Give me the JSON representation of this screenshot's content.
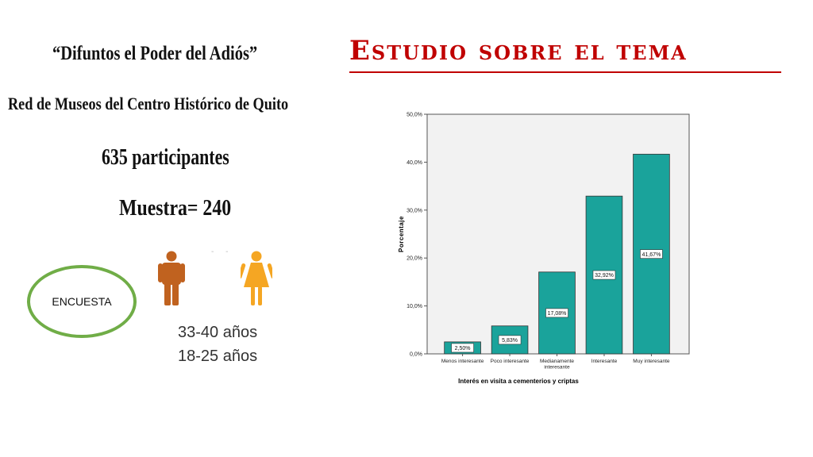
{
  "slide": {
    "quote_title": "“Difuntos el Poder del Adiós”",
    "main_title": "Estudio sobre el tema",
    "subtitle": "Red de Museos del Centro Histórico de Quito",
    "participants": "635 participantes",
    "sample": "Muestra= 240",
    "encuesta": "ENCUESTA",
    "age_male": "33-40 años",
    "age_female": "18-25 años",
    "icons": {
      "male": "man-icon",
      "female": "woman-icon"
    },
    "colors": {
      "title": "#c00000",
      "ring": "#70ad47",
      "male": "#c0621f",
      "female": "#f5a623",
      "bar": "#1aa39b"
    }
  },
  "chart_data": {
    "type": "bar",
    "categories": [
      "Menos interesante",
      "Poco interesante",
      "Medianamente interesante",
      "Interesante",
      "Muy interesante"
    ],
    "values": [
      2.5,
      5.83,
      17.08,
      32.92,
      41.67
    ],
    "data_labels": [
      "2,50%",
      "5,83%",
      "17,08%",
      "32,92%",
      "41,67%"
    ],
    "xlabel": "Interés en visita a cementerios y criptas",
    "ylabel": "Porcentaje",
    "ylim": [
      0,
      50
    ],
    "yticks": [
      "0,0%",
      "10,0%",
      "20,0%",
      "30,0%",
      "40,0%",
      "50,0%"
    ],
    "grid": false,
    "bar_color": "#1aa39b",
    "plot_bg": "#f2f2f2"
  }
}
